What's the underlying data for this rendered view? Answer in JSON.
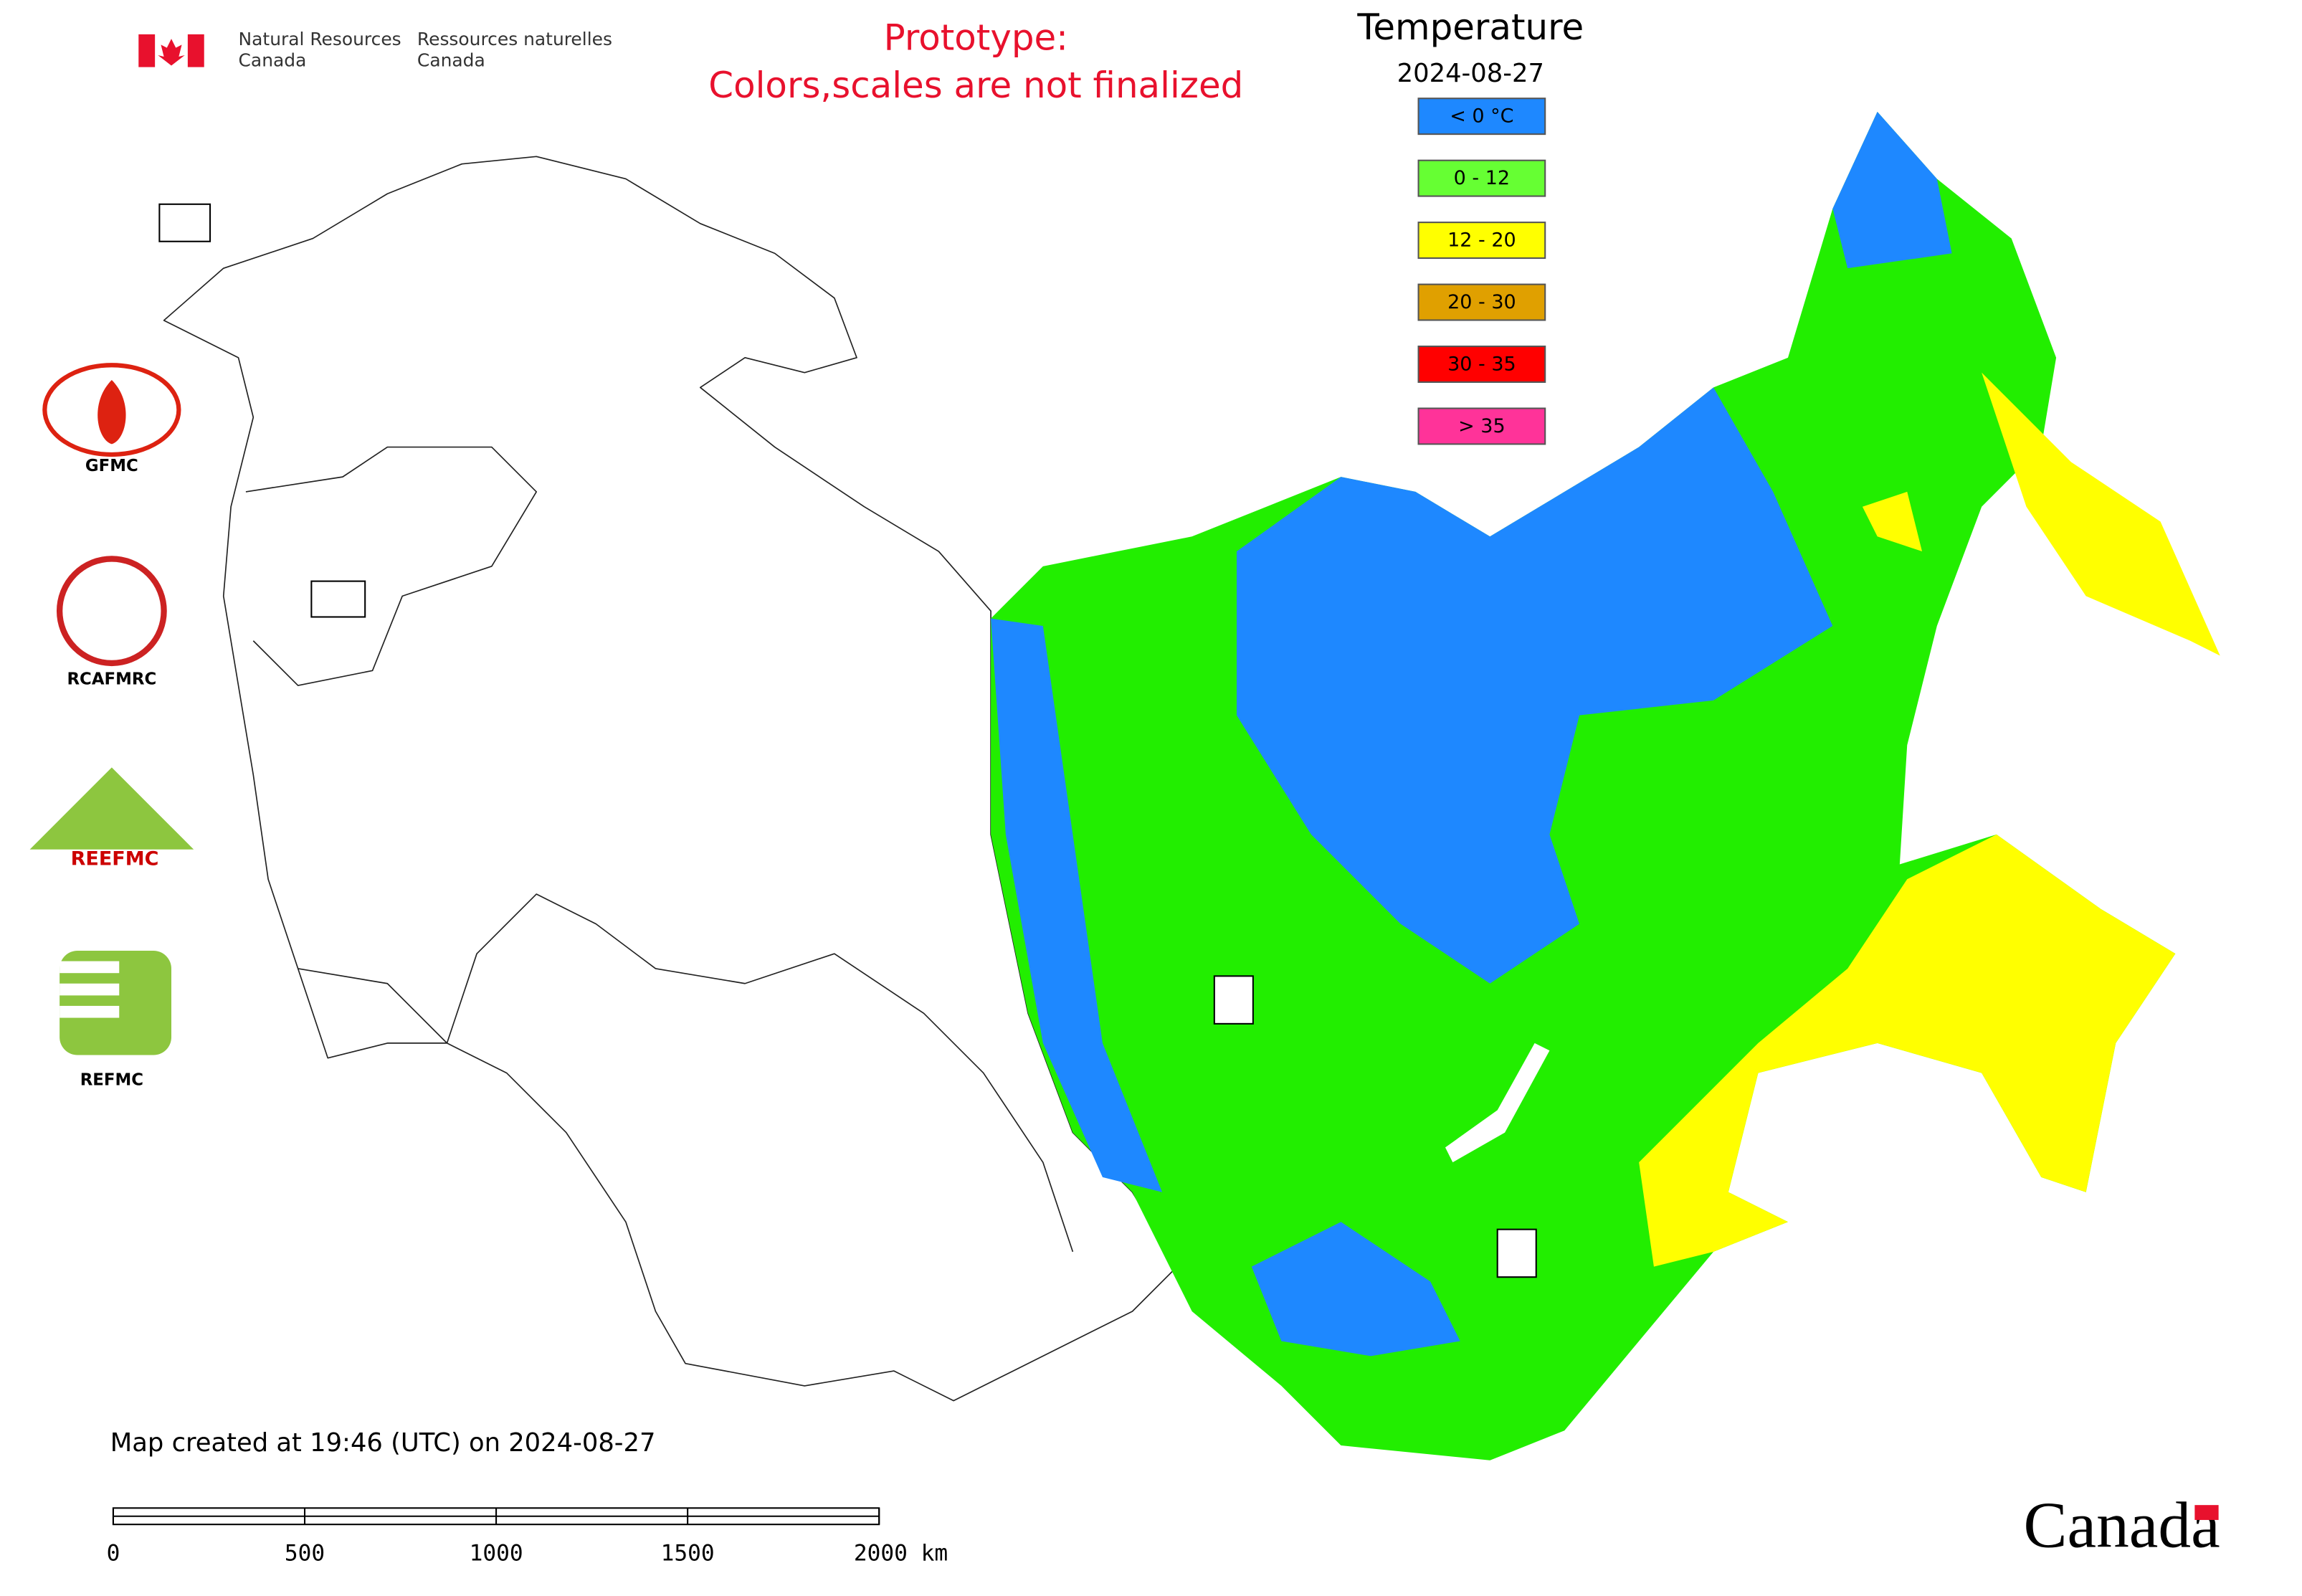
{
  "header": {
    "dept_en": [
      "Natural Resources",
      "Canada"
    ],
    "dept_fr": [
      "Ressources naturelles",
      "Canada"
    ],
    "notice": [
      "Prototype:",
      "Colors,scales are not finalized"
    ]
  },
  "legend": {
    "title": "Temperature",
    "date": "2024-08-27",
    "items": [
      {
        "label": "< 0 °C",
        "color": "#1e88ff"
      },
      {
        "label": "0 - 12",
        "color": "#66ff33"
      },
      {
        "label": "12 - 20",
        "color": "#ffff00"
      },
      {
        "label": "20 - 30",
        "color": "#e0a000"
      },
      {
        "label": "30 - 35",
        "color": "#ff0000"
      },
      {
        "label": "> 35",
        "color": "#ff3399"
      }
    ]
  },
  "logos": [
    "GFMC",
    "RCAFMRC",
    "REEFMC",
    "REFMC"
  ],
  "footer": {
    "created": "Map created at 19:46 (UTC) on 2024-08-27",
    "scale_labels": [
      "0",
      "500",
      "1000",
      "1500",
      "2000 km"
    ],
    "wordmark": "Canada"
  }
}
